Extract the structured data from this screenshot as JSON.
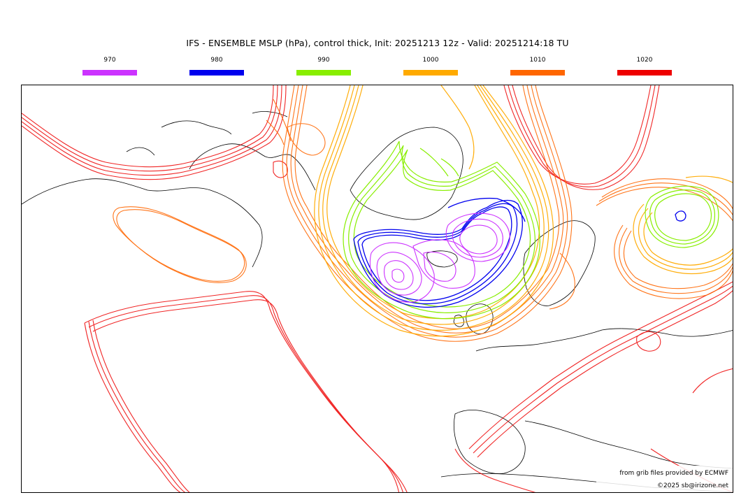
{
  "title": "IFS - ENSEMBLE MSLP (hPa), control thick, Init: 20251213 12z - Valid: 20251214:18 TU",
  "legend": [
    {
      "label": "970",
      "color": "#cc33ff"
    },
    {
      "label": "980",
      "color": "#0000ee"
    },
    {
      "label": "990",
      "color": "#88ee00"
    },
    {
      "label": "1000",
      "color": "#ffaa00"
    },
    {
      "label": "1010",
      "color": "#ff6600"
    },
    {
      "label": "1020",
      "color": "#ee0000"
    }
  ],
  "credits": {
    "source": "from grib files provided by ECMWF",
    "copyright": "©2025 sb@irizone.net"
  },
  "map": {
    "projection": "polar-stereographic",
    "region": "North Atlantic / Europe",
    "isobar_colors": {
      "970": "#cc33ff",
      "980": "#0000ee",
      "990": "#88ee00",
      "1000": "#ffaa00",
      "1010": "#ff6600",
      "1020": "#ee0000"
    }
  }
}
